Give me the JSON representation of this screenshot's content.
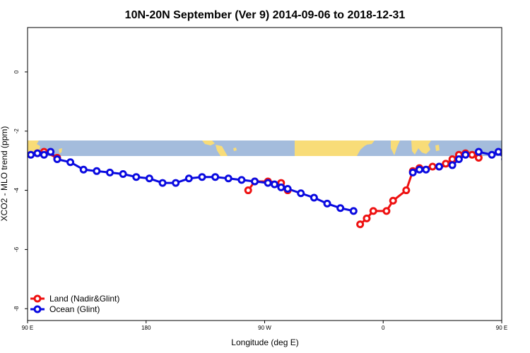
{
  "chart_data": {
    "type": "line",
    "title": "10N-20N September (Ver 9)   2014-09-06 to 2018-12-31",
    "xlabel": "Longitude (deg E)",
    "ylabel": "XCO2 - MLO trend (ppm)",
    "xlim": [
      90,
      450
    ],
    "ylim": [
      -8.4,
      1.5
    ],
    "x_ticks": [
      {
        "value": 90,
        "label": "90 E"
      },
      {
        "value": 180,
        "label": "180"
      },
      {
        "value": 270,
        "label": "90 W"
      },
      {
        "value": 360,
        "label": "0"
      },
      {
        "value": 450,
        "label": "90 E"
      },
      {
        "value": 540,
        "label": "180"
      }
    ],
    "y_ticks": [
      {
        "value": 0,
        "label": "0"
      },
      {
        "value": -2,
        "label": "-2"
      },
      {
        "value": -4,
        "label": "-4"
      },
      {
        "value": -6,
        "label": "-6"
      },
      {
        "value": -8,
        "label": "-8"
      }
    ],
    "grid": false,
    "legend_position": "bottom-left",
    "map_strip": {
      "ylim": [
        -2.33,
        -2.87
      ],
      "ocean_color": "#a4bcdc",
      "land_color": "#f8dc78"
    },
    "series": [
      {
        "name": "Land (Nadir&Glint)",
        "color": "#ee1111",
        "segments": [
          [
            [
              97.5,
              -2.75
            ],
            [
              102.5,
              -2.7
            ],
            [
              112.5,
              -2.9
            ]
          ],
          [
            [
              257.5,
              -4.0
            ],
            [
              262.5,
              -3.7
            ],
            [
              272.5,
              -3.7
            ],
            [
              282.5,
              -3.75
            ],
            [
              287.5,
              -4.0
            ]
          ],
          [
            [
              342.5,
              -5.15
            ],
            [
              347.5,
              -4.95
            ],
            [
              352.5,
              -4.7
            ],
            [
              362.5,
              -4.7
            ],
            [
              367.5,
              -4.35
            ],
            [
              377.5,
              -4.0
            ],
            [
              382.5,
              -3.35
            ],
            [
              387.5,
              -3.25
            ],
            [
              397.5,
              -3.2
            ],
            [
              402.5,
              -3.2
            ],
            [
              407.5,
              -3.1
            ],
            [
              412.5,
              -2.95
            ],
            [
              417.5,
              -2.8
            ],
            [
              422.5,
              -2.75
            ],
            [
              427.5,
              -2.8
            ],
            [
              432.5,
              -2.9
            ]
          ]
        ]
      },
      {
        "name": "Ocean (Glint)",
        "color": "#0a0ae0",
        "segments": [
          [
            [
              92.5,
              -2.8
            ],
            [
              97.5,
              -2.75
            ],
            [
              102.5,
              -2.8
            ],
            [
              107.5,
              -2.7
            ],
            [
              112.5,
              -2.95
            ],
            [
              122.5,
              -3.05
            ],
            [
              132.5,
              -3.3
            ],
            [
              142.5,
              -3.35
            ],
            [
              152.5,
              -3.4
            ],
            [
              162.5,
              -3.45
            ],
            [
              172.5,
              -3.55
            ],
            [
              182.5,
              -3.6
            ],
            [
              192.5,
              -3.75
            ],
            [
              202.5,
              -3.75
            ],
            [
              212.5,
              -3.6
            ],
            [
              222.5,
              -3.55
            ],
            [
              232.5,
              -3.55
            ],
            [
              242.5,
              -3.6
            ],
            [
              252.5,
              -3.65
            ],
            [
              262.5,
              -3.7
            ],
            [
              272.5,
              -3.75
            ],
            [
              277.5,
              -3.8
            ],
            [
              282.5,
              -3.9
            ],
            [
              287.5,
              -3.95
            ],
            [
              297.5,
              -4.1
            ],
            [
              307.5,
              -4.25
            ],
            [
              317.5,
              -4.45
            ],
            [
              327.5,
              -4.6
            ],
            [
              337.5,
              -4.7
            ]
          ],
          [
            [
              382.5,
              -3.4
            ],
            [
              387.5,
              -3.3
            ],
            [
              392.5,
              -3.3
            ],
            [
              402.5,
              -3.2
            ],
            [
              412.5,
              -3.15
            ],
            [
              417.5,
              -2.95
            ],
            [
              422.5,
              -2.8
            ],
            [
              432.5,
              -2.7
            ],
            [
              442.5,
              -2.8
            ],
            [
              447.5,
              -2.7
            ],
            [
              452.5,
              -2.95
            ],
            [
              462.5,
              -3.1
            ],
            [
              472.5,
              -3.3
            ],
            [
              482.5,
              -3.3
            ],
            [
              492.5,
              -3.4
            ],
            [
              502.5,
              -3.45
            ]
          ]
        ]
      }
    ]
  }
}
